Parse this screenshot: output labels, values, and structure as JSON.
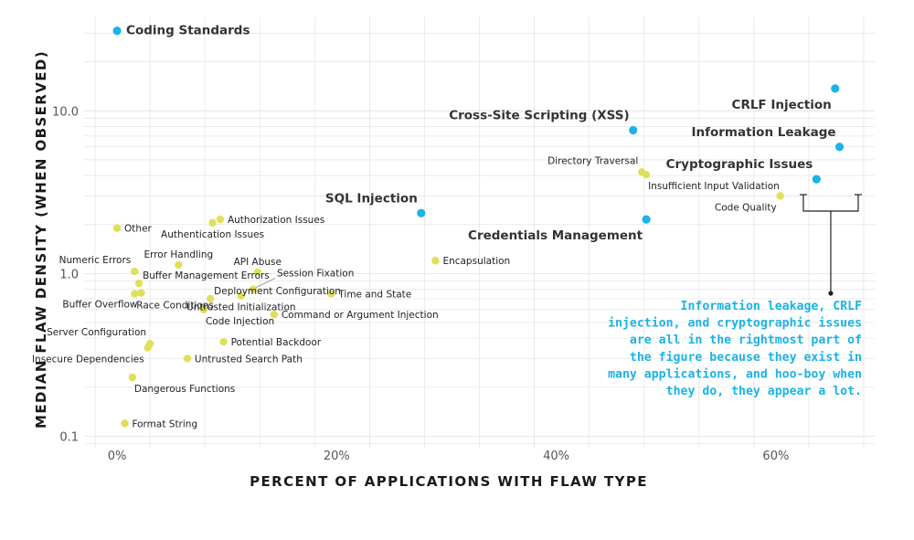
{
  "colors": {
    "normal": "#dfe05a",
    "highlight": "#1ab4e8",
    "grid": "#e4e4e4",
    "note": "#1bb3e6"
  },
  "chart_data": {
    "type": "scatter",
    "xlabel": "PERCENT OF APPLICATIONS WITH FLAW TYPE",
    "ylabel": "MEDIAN FLAW DENSITY (WHEN OBSERVED)",
    "xlim": [
      -0.03,
      0.69
    ],
    "ylim": [
      0.085,
      38
    ],
    "yscale": "log",
    "grid": true,
    "x_ticks": [
      {
        "value": 0.0,
        "label": "0%"
      },
      {
        "value": 0.2,
        "label": "20%"
      },
      {
        "value": 0.4,
        "label": "40%"
      },
      {
        "value": 0.6,
        "label": "60%"
      }
    ],
    "y_ticks": [
      {
        "value": 0.1,
        "label": "0.1"
      },
      {
        "value": 1.0,
        "label": "1.0"
      },
      {
        "value": 10.0,
        "label": "10.0"
      }
    ],
    "points": [
      {
        "label": "Coding Standards",
        "x": 0.0,
        "y": 31.0,
        "highlight": true,
        "anchor": "right"
      },
      {
        "label": "CRLF Injection",
        "x": 0.654,
        "y": 13.7,
        "highlight": true,
        "anchor": "below-left"
      },
      {
        "label": "Cross-Site Scripting (XSS)",
        "x": 0.47,
        "y": 7.6,
        "highlight": true,
        "anchor": "above-left"
      },
      {
        "label": "Information Leakage",
        "x": 0.658,
        "y": 6.0,
        "highlight": true,
        "anchor": "above-left"
      },
      {
        "label": "Cryptographic Issues",
        "x": 0.637,
        "y": 3.8,
        "highlight": true,
        "anchor": "above-left"
      },
      {
        "label": "SQL Injection",
        "x": 0.277,
        "y": 2.35,
        "highlight": true,
        "anchor": "above-left"
      },
      {
        "label": "Credentials Management",
        "x": 0.482,
        "y": 2.15,
        "highlight": true,
        "anchor": "below-left"
      },
      {
        "label": "Directory Traversal",
        "x": 0.478,
        "y": 4.2,
        "highlight": false,
        "anchor": "above-left"
      },
      {
        "label": "Insufficient Input Validation",
        "x": 0.482,
        "y": 4.05,
        "highlight": false,
        "anchor": "below-right"
      },
      {
        "label": "Code Quality",
        "x": 0.604,
        "y": 3.0,
        "highlight": false,
        "anchor": "below-left"
      },
      {
        "label": "Encapsulation",
        "x": 0.29,
        "y": 1.2,
        "highlight": false,
        "anchor": "right"
      },
      {
        "label": "Other",
        "x": 0.0,
        "y": 1.9,
        "highlight": false,
        "anchor": "right"
      },
      {
        "label": "Authorization Issues",
        "x": 0.094,
        "y": 2.15,
        "highlight": false,
        "anchor": "right"
      },
      {
        "label": "Authentication Issues",
        "x": 0.087,
        "y": 2.05,
        "highlight": false,
        "anchor": "below"
      },
      {
        "label": "Error Handling",
        "x": 0.056,
        "y": 1.13,
        "highlight": false,
        "anchor": "above"
      },
      {
        "label": "Numeric Errors",
        "x": 0.016,
        "y": 1.03,
        "highlight": false,
        "anchor": "above-left"
      },
      {
        "label": "API Abuse",
        "x": 0.128,
        "y": 1.02,
        "highlight": false,
        "anchor": "above"
      },
      {
        "label": "Buffer Management Errors",
        "x": 0.02,
        "y": 0.87,
        "highlight": false,
        "anchor": "above-right"
      },
      {
        "label": "Deployment Configuration",
        "x": 0.085,
        "y": 0.7,
        "highlight": false,
        "anchor": "above-right"
      },
      {
        "label": "Session Fixation",
        "x": 0.124,
        "y": 0.8,
        "highlight": false,
        "anchor": "leader"
      },
      {
        "label": "Race Conditions",
        "x": 0.016,
        "y": 0.75,
        "highlight": false,
        "anchor": "below-right"
      },
      {
        "label": "Untrusted Initialization",
        "x": 0.113,
        "y": 0.73,
        "highlight": false,
        "anchor": "below"
      },
      {
        "label": "Time and State",
        "x": 0.195,
        "y": 0.75,
        "highlight": false,
        "anchor": "right"
      },
      {
        "label": "Buffer Overflow",
        "x": 0.022,
        "y": 0.76,
        "highlight": false,
        "anchor": "below-left"
      },
      {
        "label": "Code Injection",
        "x": 0.079,
        "y": 0.6,
        "highlight": false,
        "anchor": "below-right"
      },
      {
        "label": "Command or Argument Injection",
        "x": 0.143,
        "y": 0.56,
        "highlight": false,
        "anchor": "right"
      },
      {
        "label": "Server Configuration",
        "x": 0.03,
        "y": 0.37,
        "highlight": false,
        "anchor": "above-left"
      },
      {
        "label": "Potential Backdoor",
        "x": 0.097,
        "y": 0.38,
        "highlight": false,
        "anchor": "right"
      },
      {
        "label": "Insecure Dependencies",
        "x": 0.028,
        "y": 0.35,
        "highlight": false,
        "anchor": "below-left"
      },
      {
        "label": "Untrusted Search Path",
        "x": 0.064,
        "y": 0.3,
        "highlight": false,
        "anchor": "right"
      },
      {
        "label": "Dangerous Functions",
        "x": 0.014,
        "y": 0.23,
        "highlight": false,
        "anchor": "below-right"
      },
      {
        "label": "Format String",
        "x": 0.007,
        "y": 0.12,
        "highlight": false,
        "anchor": "right"
      }
    ],
    "annotation": [
      "Information leakage, CRLF",
      "injection, and cryptographic issues",
      "are all in the rightmost part of",
      "the figure because they exist in",
      "many applications, and hoo-boy when",
      "they do, they appear a lot."
    ]
  }
}
